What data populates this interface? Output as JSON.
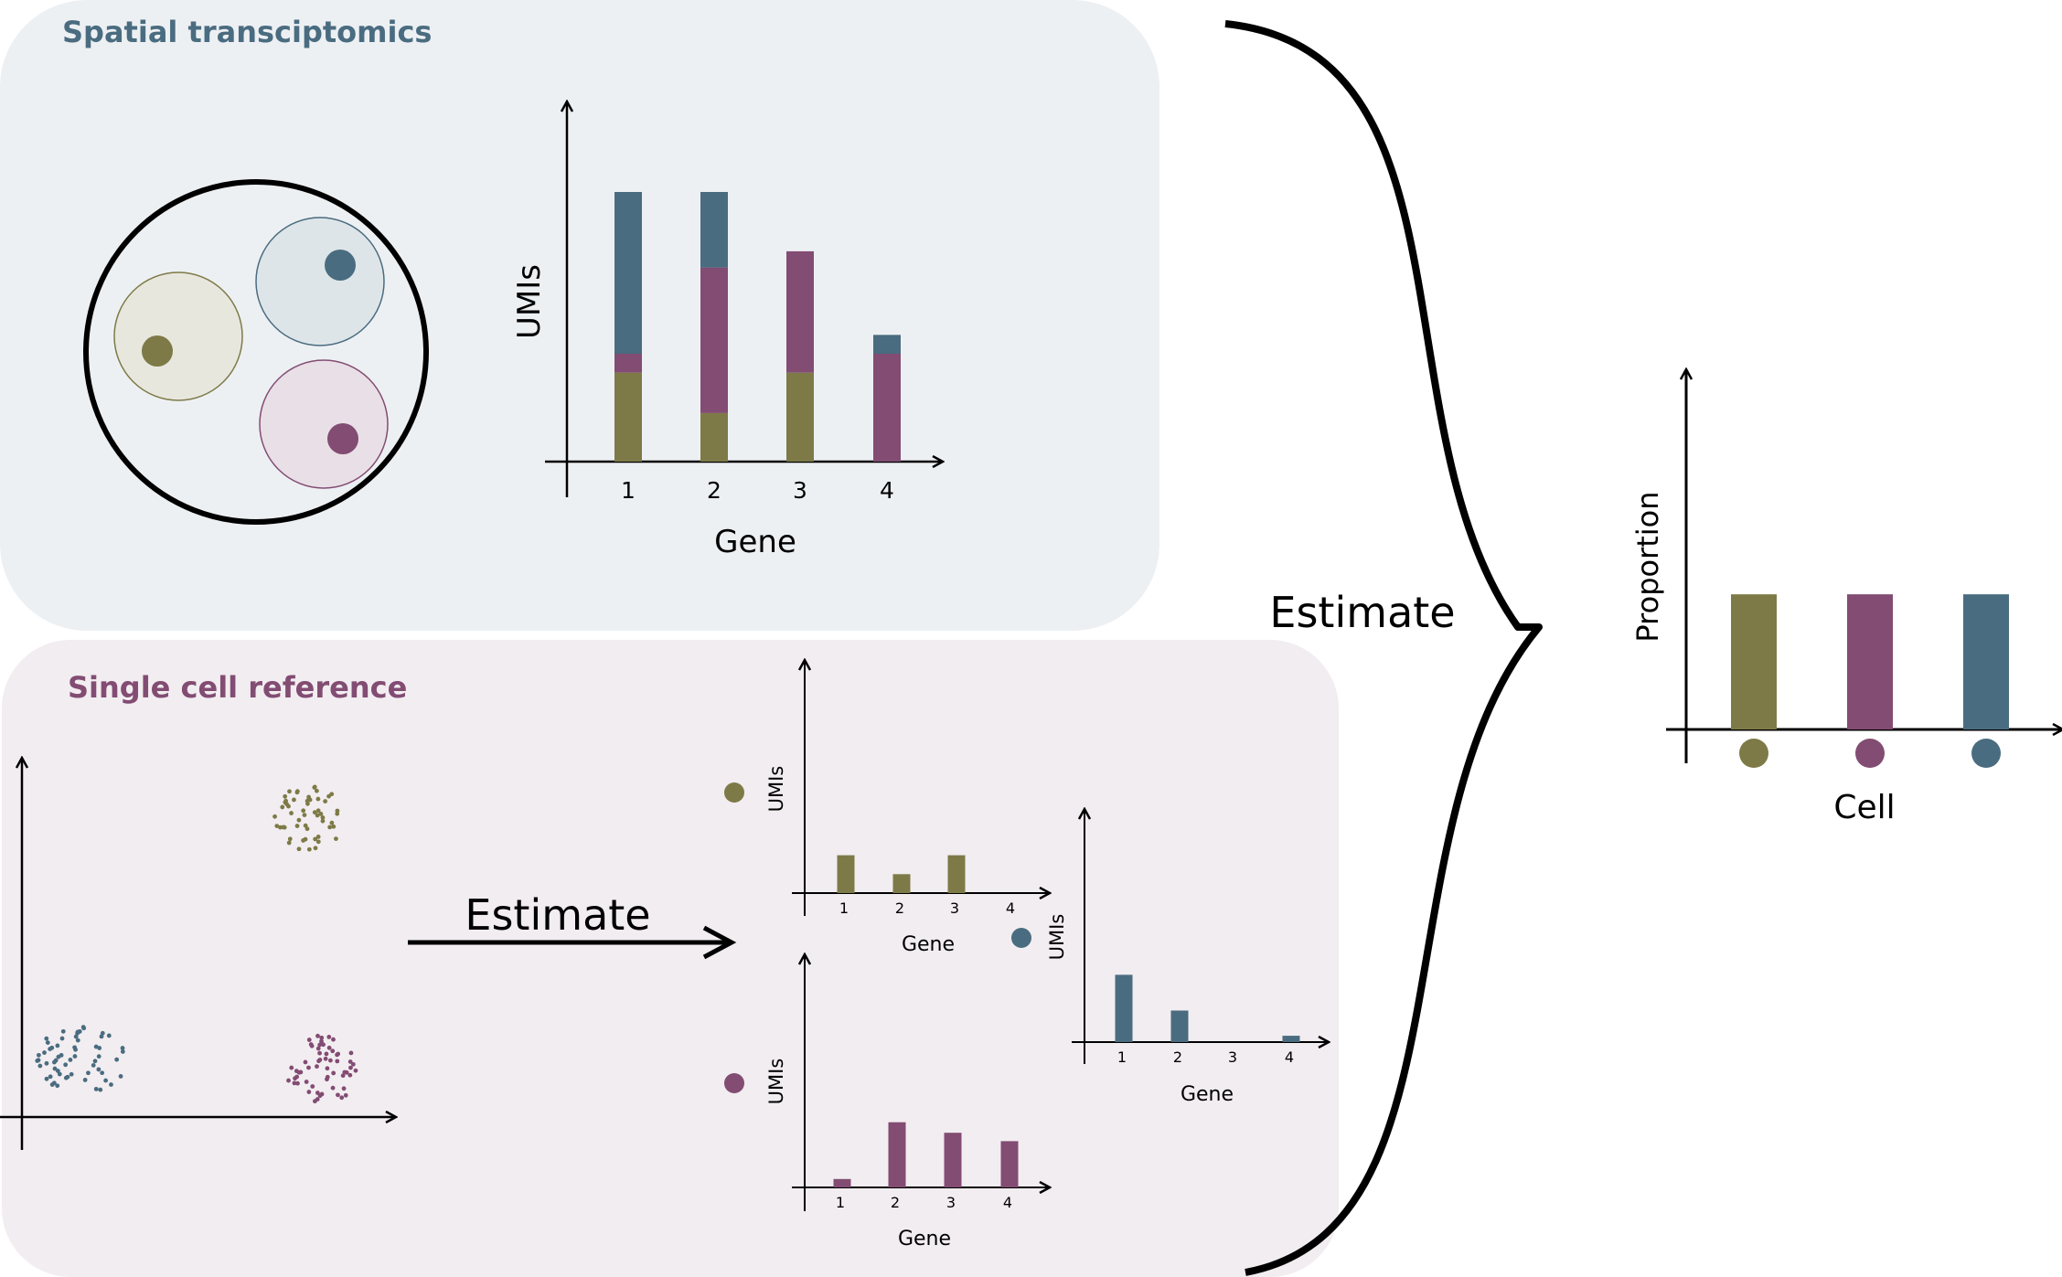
{
  "colors": {
    "olive": "#7d7a47",
    "plum": "#824c73",
    "slate": "#4a6c80",
    "spatial_bg": "#edf0f3",
    "reference_bg": "#f2edf0",
    "spatial_title": "#4a6c80",
    "reference_title": "#824c73",
    "ink": "#000000"
  },
  "spatial_panel": {
    "title": "Spatial transciptomics",
    "spot": {
      "cells": [
        {
          "type": "olive"
        },
        {
          "type": "slate"
        },
        {
          "type": "plum"
        }
      ]
    }
  },
  "reference_panel": {
    "title": "Single cell reference",
    "clusters": [
      "olive",
      "slate",
      "plum"
    ],
    "arrow_label": "Estimate"
  },
  "brace_label": "Estimate",
  "chart_data": [
    {
      "id": "spot_umis",
      "type": "bar",
      "stacked": true,
      "categories": [
        "1",
        "2",
        "3",
        "4"
      ],
      "xlabel": "Gene",
      "ylabel": "UMIs",
      "ylim": [
        0,
        1.0
      ],
      "series": [
        {
          "color": "olive",
          "values": [
            0.33,
            0.18,
            0.33,
            0
          ]
        },
        {
          "color": "plum",
          "values": [
            0.07,
            0.54,
            0.45,
            0.4
          ]
        },
        {
          "color": "slate",
          "values": [
            0.6,
            0.28,
            0,
            0.07
          ]
        }
      ]
    },
    {
      "id": "ref_olive",
      "type": "bar",
      "categories": [
        "1",
        "2",
        "3",
        "4"
      ],
      "xlabel": "Gene",
      "ylabel": "UMIs",
      "ylim": [
        0,
        1.0
      ],
      "series": [
        {
          "color": "olive",
          "values": [
            0.18,
            0.09,
            0.18,
            0
          ]
        }
      ]
    },
    {
      "id": "ref_plum",
      "type": "bar",
      "categories": [
        "1",
        "2",
        "3",
        "4"
      ],
      "xlabel": "Gene",
      "ylabel": "UMIs",
      "ylim": [
        0,
        1.0
      ],
      "series": [
        {
          "color": "plum",
          "values": [
            0.04,
            0.31,
            0.26,
            0.22
          ]
        }
      ]
    },
    {
      "id": "ref_slate",
      "type": "bar",
      "categories": [
        "1",
        "2",
        "3",
        "4"
      ],
      "xlabel": "Gene",
      "ylabel": "UMIs",
      "ylim": [
        0,
        1.0
      ],
      "series": [
        {
          "color": "slate",
          "values": [
            0.32,
            0.15,
            0,
            0.03
          ]
        }
      ]
    },
    {
      "id": "proportion",
      "type": "bar",
      "categories": [
        "olive",
        "plum",
        "slate"
      ],
      "xlabel": "Cell",
      "ylabel": "Proportion",
      "ylim": [
        0,
        1.0
      ],
      "series": [
        {
          "values": [
            0.333,
            0.333,
            0.333
          ]
        }
      ]
    }
  ]
}
